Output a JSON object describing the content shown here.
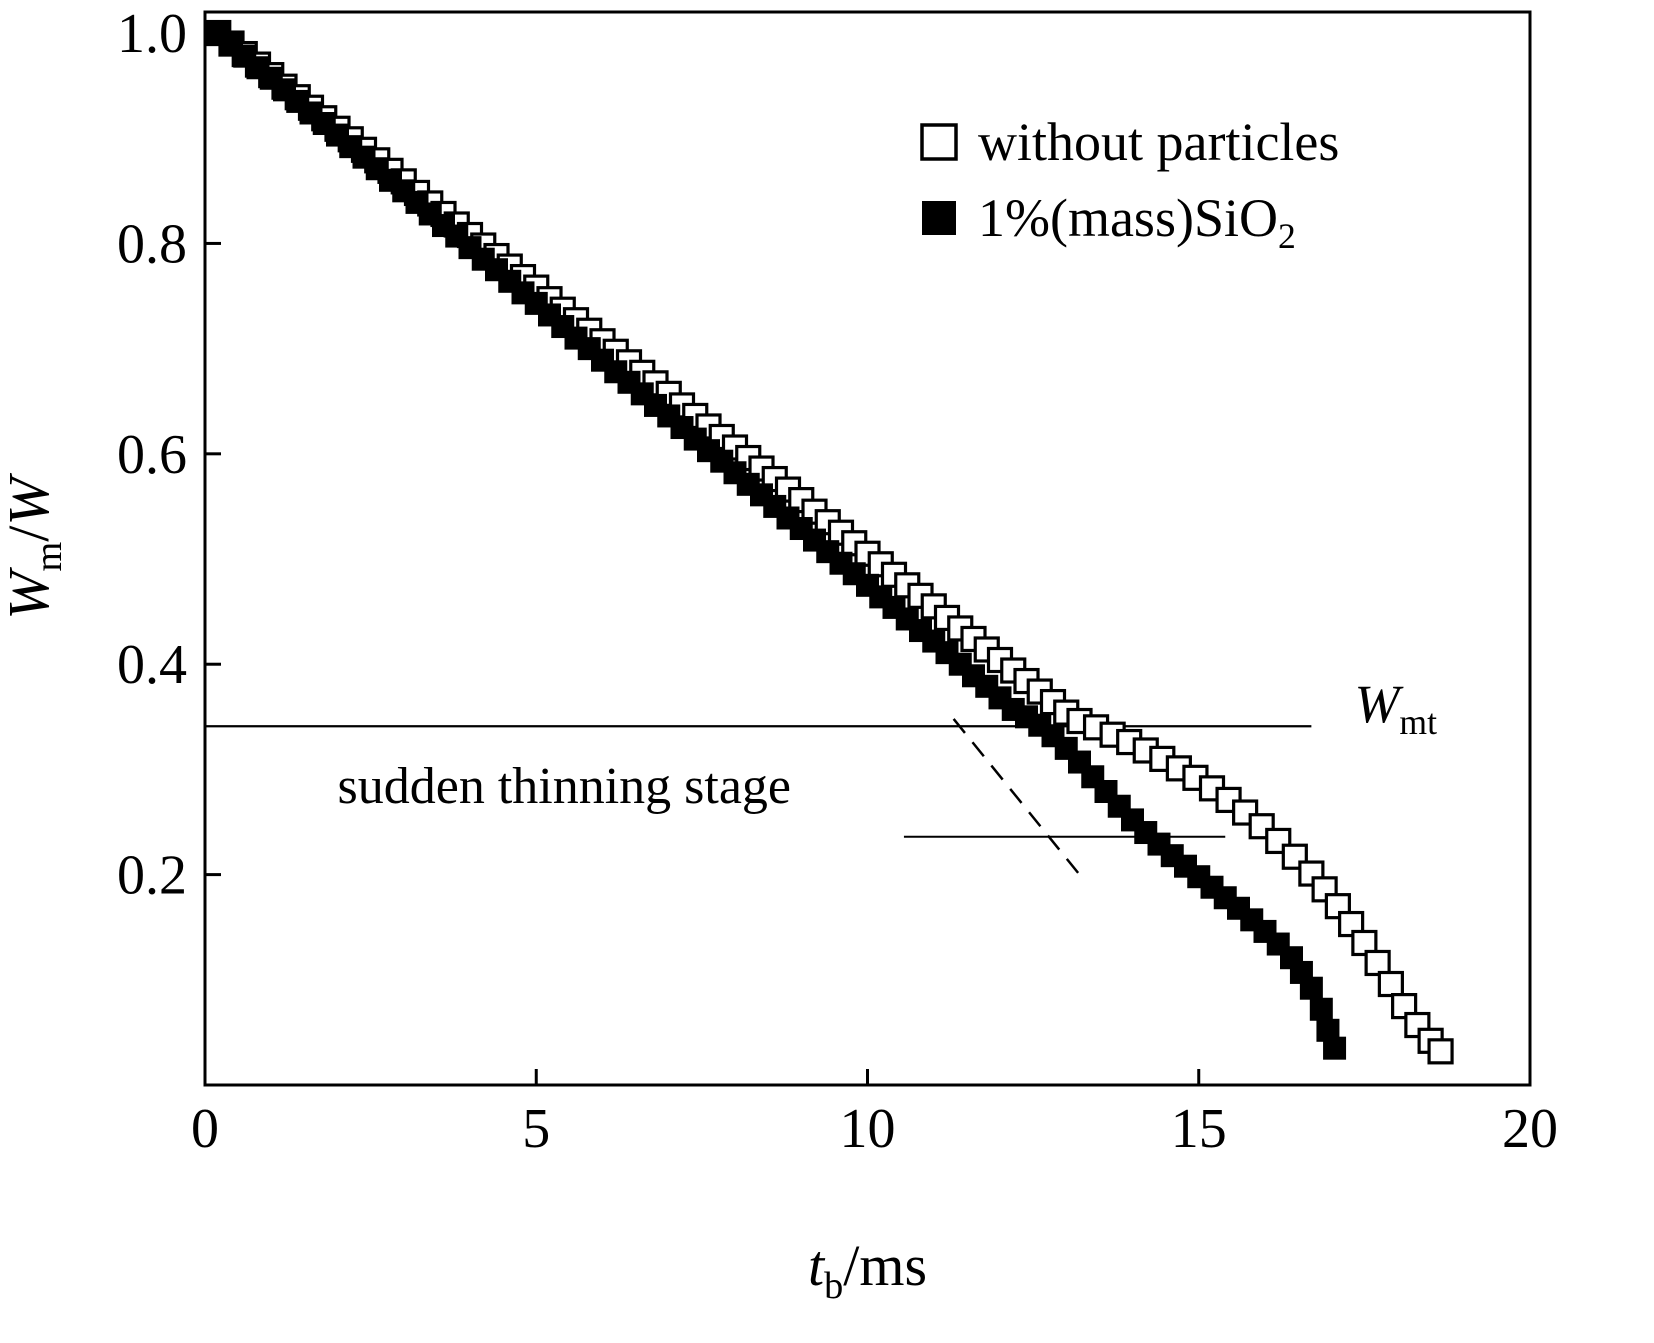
{
  "colors": {
    "foreground": "#000000",
    "background": "#ffffff"
  },
  "chart_data": {
    "type": "scatter",
    "title": "",
    "xlabel_parts": [
      {
        "t": "t",
        "italic": true
      },
      {
        "t": "b",
        "sub": true
      },
      {
        "t": "/ms"
      }
    ],
    "ylabel_parts": [
      {
        "t": "W",
        "italic": true
      },
      {
        "t": "m",
        "sub": true
      },
      {
        "t": "/"
      },
      {
        "t": "W",
        "italic": true
      }
    ],
    "xlim": [
      0,
      20
    ],
    "ylim": [
      0,
      1.02
    ],
    "xticks": [
      0,
      5,
      10,
      15,
      20
    ],
    "xtick_labels": [
      "0",
      "5",
      "10",
      "15",
      "20"
    ],
    "yticks": [
      0.2,
      0.4,
      0.6,
      0.8,
      1.0
    ],
    "ytick_labels": [
      "0.2",
      "0.4",
      "0.6",
      "0.8",
      "1.0"
    ],
    "grid": false,
    "legend": {
      "position": "upper-right",
      "entries": [
        {
          "marker": "open-square",
          "label_parts": [
            {
              "t": "without particles"
            }
          ]
        },
        {
          "marker": "filled-square",
          "label_parts": [
            {
              "t": "1%(mass)SiO"
            },
            {
              "t": "2",
              "sub": true
            }
          ]
        }
      ]
    },
    "series": [
      {
        "name": "without particles",
        "marker": "open-square",
        "points": [
          [
            0.2,
            1.0
          ],
          [
            0.4,
            0.99
          ],
          [
            0.6,
            0.98
          ],
          [
            0.8,
            0.97
          ],
          [
            1.0,
            0.96
          ],
          [
            1.2,
            0.949
          ],
          [
            1.4,
            0.939
          ],
          [
            1.6,
            0.929
          ],
          [
            1.8,
            0.919
          ],
          [
            2.0,
            0.909
          ],
          [
            2.2,
            0.899
          ],
          [
            2.4,
            0.889
          ],
          [
            2.6,
            0.879
          ],
          [
            2.8,
            0.869
          ],
          [
            3.0,
            0.859
          ],
          [
            3.2,
            0.848
          ],
          [
            3.4,
            0.838
          ],
          [
            3.6,
            0.828
          ],
          [
            3.8,
            0.818
          ],
          [
            4.0,
            0.808
          ],
          [
            4.2,
            0.798
          ],
          [
            4.4,
            0.788
          ],
          [
            4.6,
            0.778
          ],
          [
            4.8,
            0.768
          ],
          [
            5.0,
            0.758
          ],
          [
            5.2,
            0.747
          ],
          [
            5.4,
            0.737
          ],
          [
            5.6,
            0.727
          ],
          [
            5.8,
            0.717
          ],
          [
            6.0,
            0.707
          ],
          [
            6.2,
            0.697
          ],
          [
            6.4,
            0.687
          ],
          [
            6.6,
            0.677
          ],
          [
            6.8,
            0.667
          ],
          [
            7.0,
            0.657
          ],
          [
            7.2,
            0.646
          ],
          [
            7.4,
            0.636
          ],
          [
            7.6,
            0.626
          ],
          [
            7.8,
            0.616
          ],
          [
            8.0,
            0.606
          ],
          [
            8.2,
            0.596
          ],
          [
            8.4,
            0.586
          ],
          [
            8.6,
            0.576
          ],
          [
            8.8,
            0.566
          ],
          [
            9.0,
            0.556
          ],
          [
            9.2,
            0.545
          ],
          [
            9.4,
            0.535
          ],
          [
            9.6,
            0.525
          ],
          [
            9.8,
            0.515
          ],
          [
            10.0,
            0.505
          ],
          [
            10.2,
            0.495
          ],
          [
            10.4,
            0.485
          ],
          [
            10.6,
            0.475
          ],
          [
            10.8,
            0.465
          ],
          [
            11.0,
            0.455
          ],
          [
            11.2,
            0.444
          ],
          [
            11.4,
            0.434
          ],
          [
            11.6,
            0.424
          ],
          [
            11.8,
            0.414
          ],
          [
            12.0,
            0.404
          ],
          [
            12.2,
            0.394
          ],
          [
            12.4,
            0.384
          ],
          [
            12.6,
            0.374
          ],
          [
            12.8,
            0.364
          ],
          [
            13.0,
            0.354
          ],
          [
            13.2,
            0.346
          ],
          [
            13.45,
            0.34
          ],
          [
            13.7,
            0.333
          ],
          [
            13.95,
            0.326
          ],
          [
            14.2,
            0.318
          ],
          [
            14.45,
            0.31
          ],
          [
            14.7,
            0.301
          ],
          [
            14.95,
            0.292
          ],
          [
            15.2,
            0.282
          ],
          [
            15.45,
            0.271
          ],
          [
            15.7,
            0.259
          ],
          [
            15.95,
            0.246
          ],
          [
            16.2,
            0.232
          ],
          [
            16.45,
            0.217
          ],
          [
            16.7,
            0.201
          ],
          [
            16.9,
            0.186
          ],
          [
            17.1,
            0.17
          ],
          [
            17.3,
            0.153
          ],
          [
            17.5,
            0.135
          ],
          [
            17.7,
            0.116
          ],
          [
            17.9,
            0.096
          ],
          [
            18.1,
            0.075
          ],
          [
            18.3,
            0.057
          ],
          [
            18.5,
            0.042
          ],
          [
            18.65,
            0.032
          ]
        ]
      },
      {
        "name": "1%(mass)SiO2",
        "marker": "filled-square",
        "points": [
          [
            0.2,
            0.999
          ],
          [
            0.4,
            0.989
          ],
          [
            0.6,
            0.978
          ],
          [
            0.8,
            0.967
          ],
          [
            1.0,
            0.957
          ],
          [
            1.2,
            0.946
          ],
          [
            1.4,
            0.935
          ],
          [
            1.6,
            0.924
          ],
          [
            1.8,
            0.914
          ],
          [
            2.0,
            0.903
          ],
          [
            2.2,
            0.892
          ],
          [
            2.4,
            0.882
          ],
          [
            2.6,
            0.871
          ],
          [
            2.8,
            0.86
          ],
          [
            3.0,
            0.85
          ],
          [
            3.2,
            0.839
          ],
          [
            3.4,
            0.828
          ],
          [
            3.6,
            0.817
          ],
          [
            3.8,
            0.807
          ],
          [
            4.0,
            0.796
          ],
          [
            4.2,
            0.785
          ],
          [
            4.4,
            0.775
          ],
          [
            4.6,
            0.764
          ],
          [
            4.8,
            0.753
          ],
          [
            5.0,
            0.743
          ],
          [
            5.2,
            0.732
          ],
          [
            5.4,
            0.721
          ],
          [
            5.6,
            0.71
          ],
          [
            5.8,
            0.7
          ],
          [
            6.0,
            0.689
          ],
          [
            6.2,
            0.678
          ],
          [
            6.4,
            0.668
          ],
          [
            6.6,
            0.657
          ],
          [
            6.8,
            0.646
          ],
          [
            7.0,
            0.636
          ],
          [
            7.2,
            0.625
          ],
          [
            7.4,
            0.614
          ],
          [
            7.6,
            0.603
          ],
          [
            7.8,
            0.593
          ],
          [
            8.0,
            0.582
          ],
          [
            8.2,
            0.571
          ],
          [
            8.4,
            0.561
          ],
          [
            8.6,
            0.55
          ],
          [
            8.8,
            0.539
          ],
          [
            9.0,
            0.529
          ],
          [
            9.2,
            0.518
          ],
          [
            9.4,
            0.507
          ],
          [
            9.6,
            0.496
          ],
          [
            9.8,
            0.486
          ],
          [
            10.0,
            0.475
          ],
          [
            10.2,
            0.464
          ],
          [
            10.4,
            0.454
          ],
          [
            10.6,
            0.443
          ],
          [
            10.8,
            0.432
          ],
          [
            11.0,
            0.422
          ],
          [
            11.2,
            0.411
          ],
          [
            11.4,
            0.4
          ],
          [
            11.6,
            0.389
          ],
          [
            11.8,
            0.379
          ],
          [
            12.0,
            0.368
          ],
          [
            12.2,
            0.357
          ],
          [
            12.4,
            0.35
          ],
          [
            12.6,
            0.342
          ],
          [
            12.8,
            0.332
          ],
          [
            13.0,
            0.32
          ],
          [
            13.2,
            0.307
          ],
          [
            13.4,
            0.293
          ],
          [
            13.6,
            0.279
          ],
          [
            13.8,
            0.265
          ],
          [
            14.0,
            0.252
          ],
          [
            14.2,
            0.24
          ],
          [
            14.4,
            0.229
          ],
          [
            14.6,
            0.218
          ],
          [
            14.8,
            0.208
          ],
          [
            15.0,
            0.198
          ],
          [
            15.2,
            0.188
          ],
          [
            15.4,
            0.178
          ],
          [
            15.6,
            0.168
          ],
          [
            15.8,
            0.157
          ],
          [
            16.0,
            0.146
          ],
          [
            16.2,
            0.134
          ],
          [
            16.4,
            0.121
          ],
          [
            16.55,
            0.107
          ],
          [
            16.7,
            0.092
          ],
          [
            16.85,
            0.072
          ],
          [
            16.95,
            0.052
          ],
          [
            17.05,
            0.035
          ]
        ]
      }
    ],
    "annotations": {
      "wmt_line": {
        "y": 0.341,
        "x1": 0,
        "x2": 16.7,
        "label_parts": [
          {
            "t": "W",
            "italic": true
          },
          {
            "t": "mt",
            "sub": true
          }
        ],
        "label_x": 17.35,
        "label_y": 0.345
      },
      "short_line": {
        "y": 0.236,
        "x1": 10.55,
        "x2": 15.4
      },
      "dashed_line": {
        "x1": 11.3,
        "y1": 0.348,
        "x2": 13.2,
        "y2": 0.2
      },
      "stage_text": {
        "text": "sudden thinning stage",
        "x": 2.0,
        "y": 0.268
      }
    }
  }
}
